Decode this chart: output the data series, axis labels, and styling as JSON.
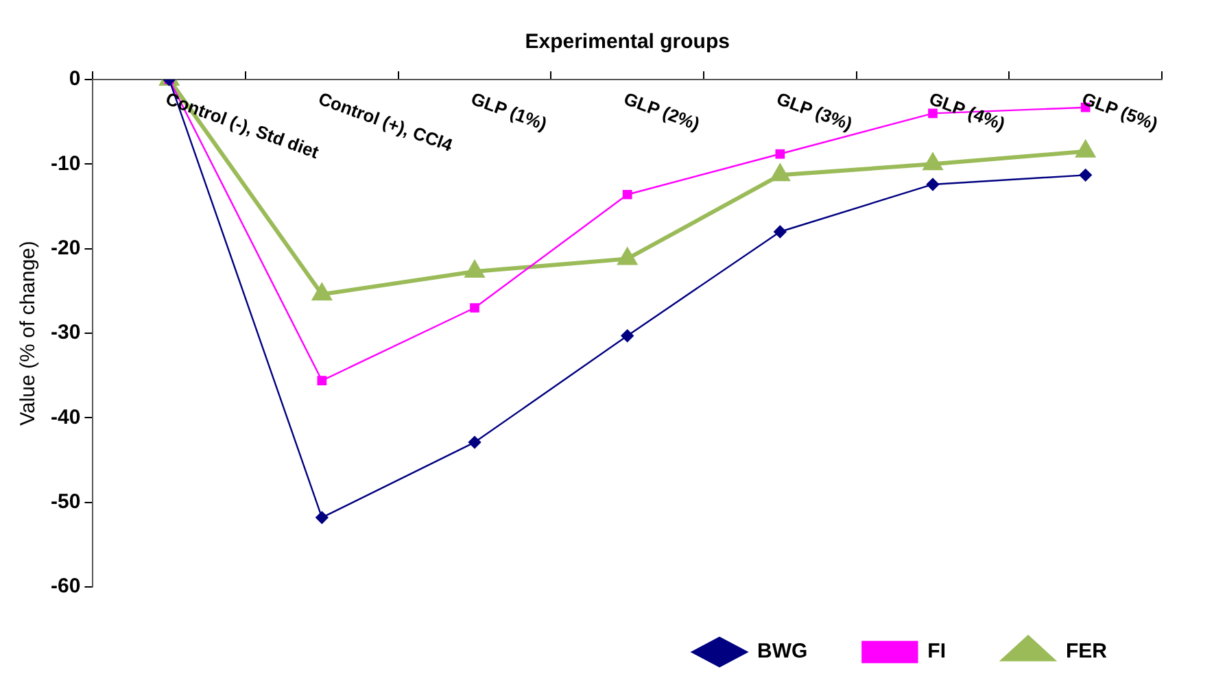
{
  "chart_data": {
    "type": "line",
    "xlabel": "Experimental groups",
    "ylabel": "Value (% of change)",
    "categories": [
      "Control (-), Std diet",
      "Control (+), CCl4",
      "GLP (1%)",
      "GLP (2%)",
      "GLP (3%)",
      "GLP (4%)",
      "GLP (5%)"
    ],
    "series": [
      {
        "name": "BWG",
        "color": "#000080",
        "marker": "diamond",
        "values": [
          0,
          -51.8,
          -42.9,
          -30.3,
          -18.0,
          -12.4,
          -11.3
        ]
      },
      {
        "name": "FI",
        "color": "#ff00ff",
        "marker": "square",
        "values": [
          0,
          -35.6,
          -27.0,
          -13.6,
          -8.8,
          -4.0,
          -3.3
        ]
      },
      {
        "name": "FER",
        "color": "#9bbb59",
        "marker": "triangle",
        "values": [
          0,
          -25.4,
          -22.7,
          -21.2,
          -11.3,
          -10.0,
          -8.5
        ]
      }
    ],
    "ylim": [
      -60,
      0
    ],
    "yticks": [
      -60,
      -50,
      -40,
      -30,
      -20,
      -10,
      0
    ],
    "grid": false,
    "legend": "bottom right",
    "line_style": "solid"
  }
}
